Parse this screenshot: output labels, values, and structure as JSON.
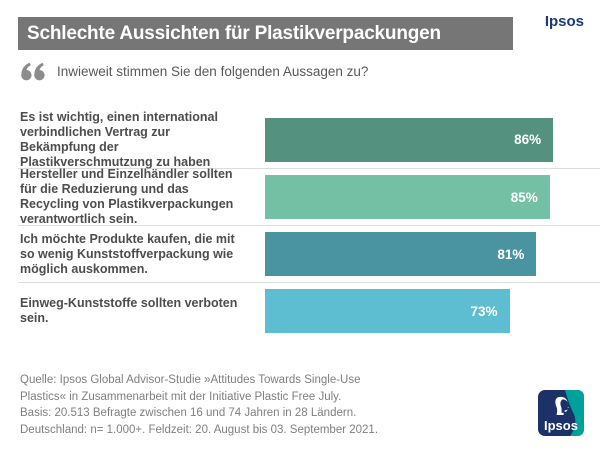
{
  "page": {
    "title_bar": {
      "text": "Schlechte Aussichten für Plastikverpackungen"
    },
    "brand_wordmark": "Ipsos",
    "question": "Inwieweit stimmen Sie den folgenden Aussagen zu?"
  },
  "chart_data": {
    "type": "bar",
    "orientation": "horizontal",
    "title": "Schlechte Aussichten für Plastikverpackungen",
    "categories": [
      "Es ist wichtig, einen international verbindlichen Vertrag zur Bekämpfung der Plastikverschmutzung zu haben",
      "Hersteller und Einzelhändler sollten für die Reduzierung und das Recycling von Plastikverpackungen verantwortlich sein.",
      "Ich möchte Produkte kaufen, die mit so wenig Kunststoffverpackung wie möglich auskommen.",
      "Einweg-Kunststoffe sollten verboten sein."
    ],
    "values": [
      86,
      85,
      81,
      73
    ],
    "value_labels": [
      "86%",
      "85%",
      "81%",
      "73%"
    ],
    "bar_colors": [
      "#54917e",
      "#73c0a5",
      "#4a93a0",
      "#5cbed0"
    ],
    "xlim": [
      0,
      100
    ],
    "value_label_position": "inside-right",
    "grid": false,
    "legend": false
  },
  "footer": {
    "source_lines": [
      "Quelle: Ipsos Global Advisor-Studie »Attitudes Towards Single-Use",
      "Plastics« in Zusammenarbeit mit der Initiative Plastic Free July.",
      "Basis: 20.513 Befragte zwischen 16 und 74 Jahren in 28 Ländern.",
      "Deutschland: n= 1.000+. Feldzeit: 20. August bis 03. September 2021."
    ],
    "logo_text": "Ipsos"
  },
  "colors": {
    "title_bar_bg": "#767676",
    "title_text": "#ffffff",
    "brand_navy": "#1b3a73",
    "question_text": "#595959",
    "label_text": "#4d4d4d",
    "divider": "#dcdcdc",
    "value_text": "#ffffff",
    "source_text": "#7f7f7f",
    "quote_icon": "#8c8c8c",
    "logo_navy": "#1b3168",
    "logo_teal": "#00a19a"
  }
}
